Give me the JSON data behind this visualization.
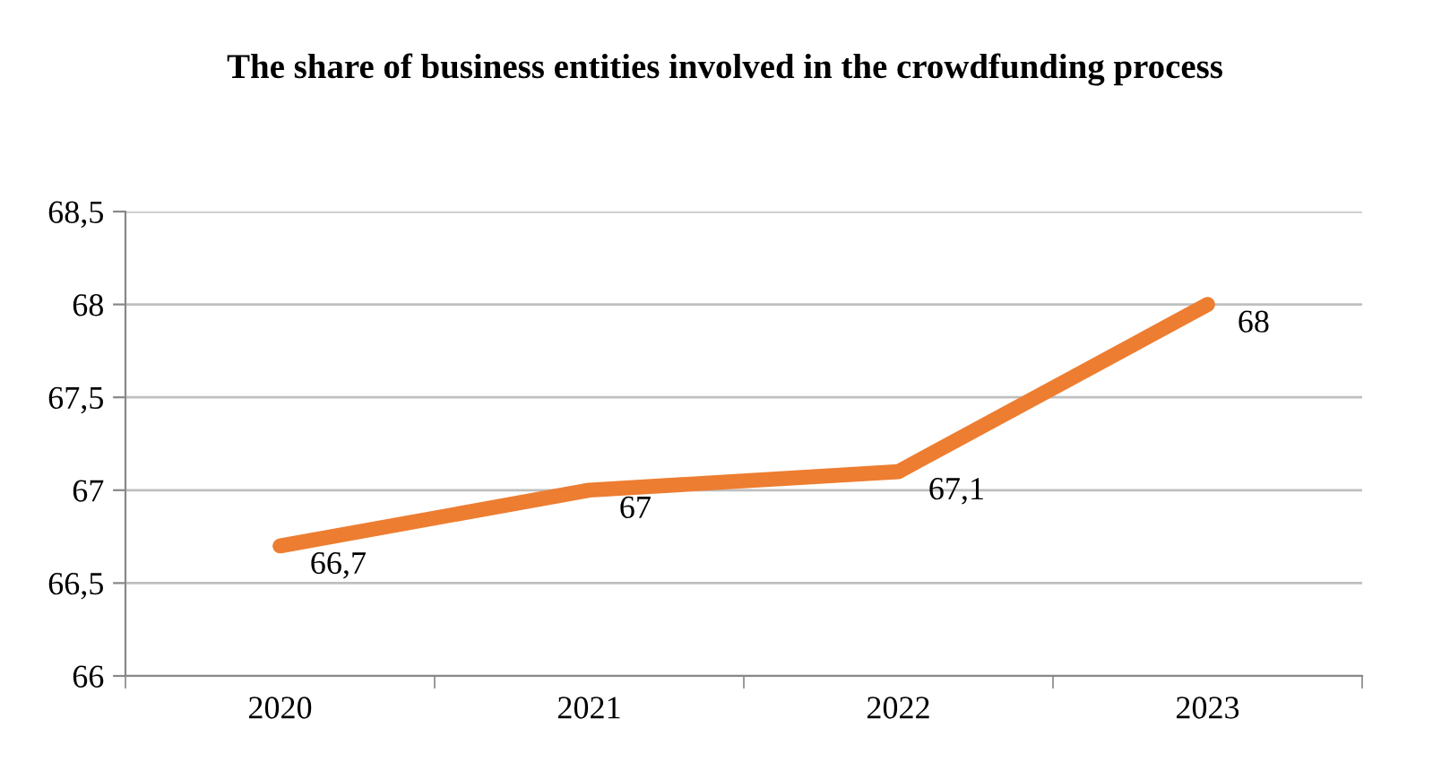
{
  "chart_data": {
    "type": "line",
    "title": "The share of business entities involved in the crowdfunding process",
    "categories": [
      "2020",
      "2021",
      "2022",
      "2023"
    ],
    "series": [
      {
        "color": "#ed7d31",
        "values": [
          66.7,
          67,
          67.1,
          68
        ],
        "value_labels": [
          "66,7",
          "67",
          "67,1",
          "68"
        ]
      }
    ],
    "ylim": [
      66,
      68.5
    ],
    "yticks": [
      66,
      {
        "value": 66.5,
        "label": "66,5"
      },
      67,
      {
        "value": 67.5,
        "label": "67,5"
      },
      68,
      {
        "value": 68.5,
        "label": "68,5"
      }
    ],
    "grid": "y",
    "legend": false,
    "marker": "none",
    "line_style": "solid"
  }
}
